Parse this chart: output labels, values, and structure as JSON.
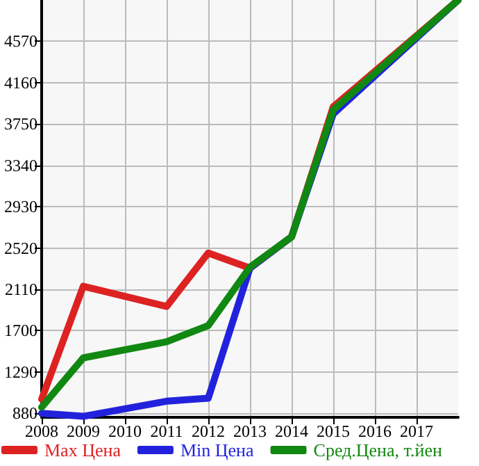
{
  "chart_data": {
    "type": "line",
    "x": [
      2008,
      2009,
      2011,
      2012,
      2013,
      2014,
      2015,
      2018
    ],
    "series": [
      {
        "name": "Max Цена",
        "color": "#dd2222",
        "values": [
          1020,
          2140,
          1940,
          2470,
          2320,
          2630,
          3920,
          4980
        ]
      },
      {
        "name": "Min Цена",
        "color": "#2222dd",
        "values": [
          880,
          850,
          1000,
          1030,
          2320,
          2630,
          3850,
          4980
        ]
      },
      {
        "name": "Сред.Цена, т.йен",
        "color": "#118811",
        "values": [
          940,
          1430,
          1590,
          1750,
          2330,
          2630,
          3890,
          4980
        ]
      }
    ],
    "xlim": [
      2008,
      2018
    ],
    "xticks": [
      2008,
      2009,
      2010,
      2011,
      2012,
      2013,
      2014,
      2015,
      2016,
      2017
    ],
    "ylim": [
      840,
      4980
    ],
    "yticks": [
      880,
      1290,
      1700,
      2110,
      2520,
      2930,
      3340,
      3750,
      4160,
      4570
    ],
    "grid": true,
    "legend": "bottom",
    "marker": "none",
    "line_style": "solid"
  }
}
